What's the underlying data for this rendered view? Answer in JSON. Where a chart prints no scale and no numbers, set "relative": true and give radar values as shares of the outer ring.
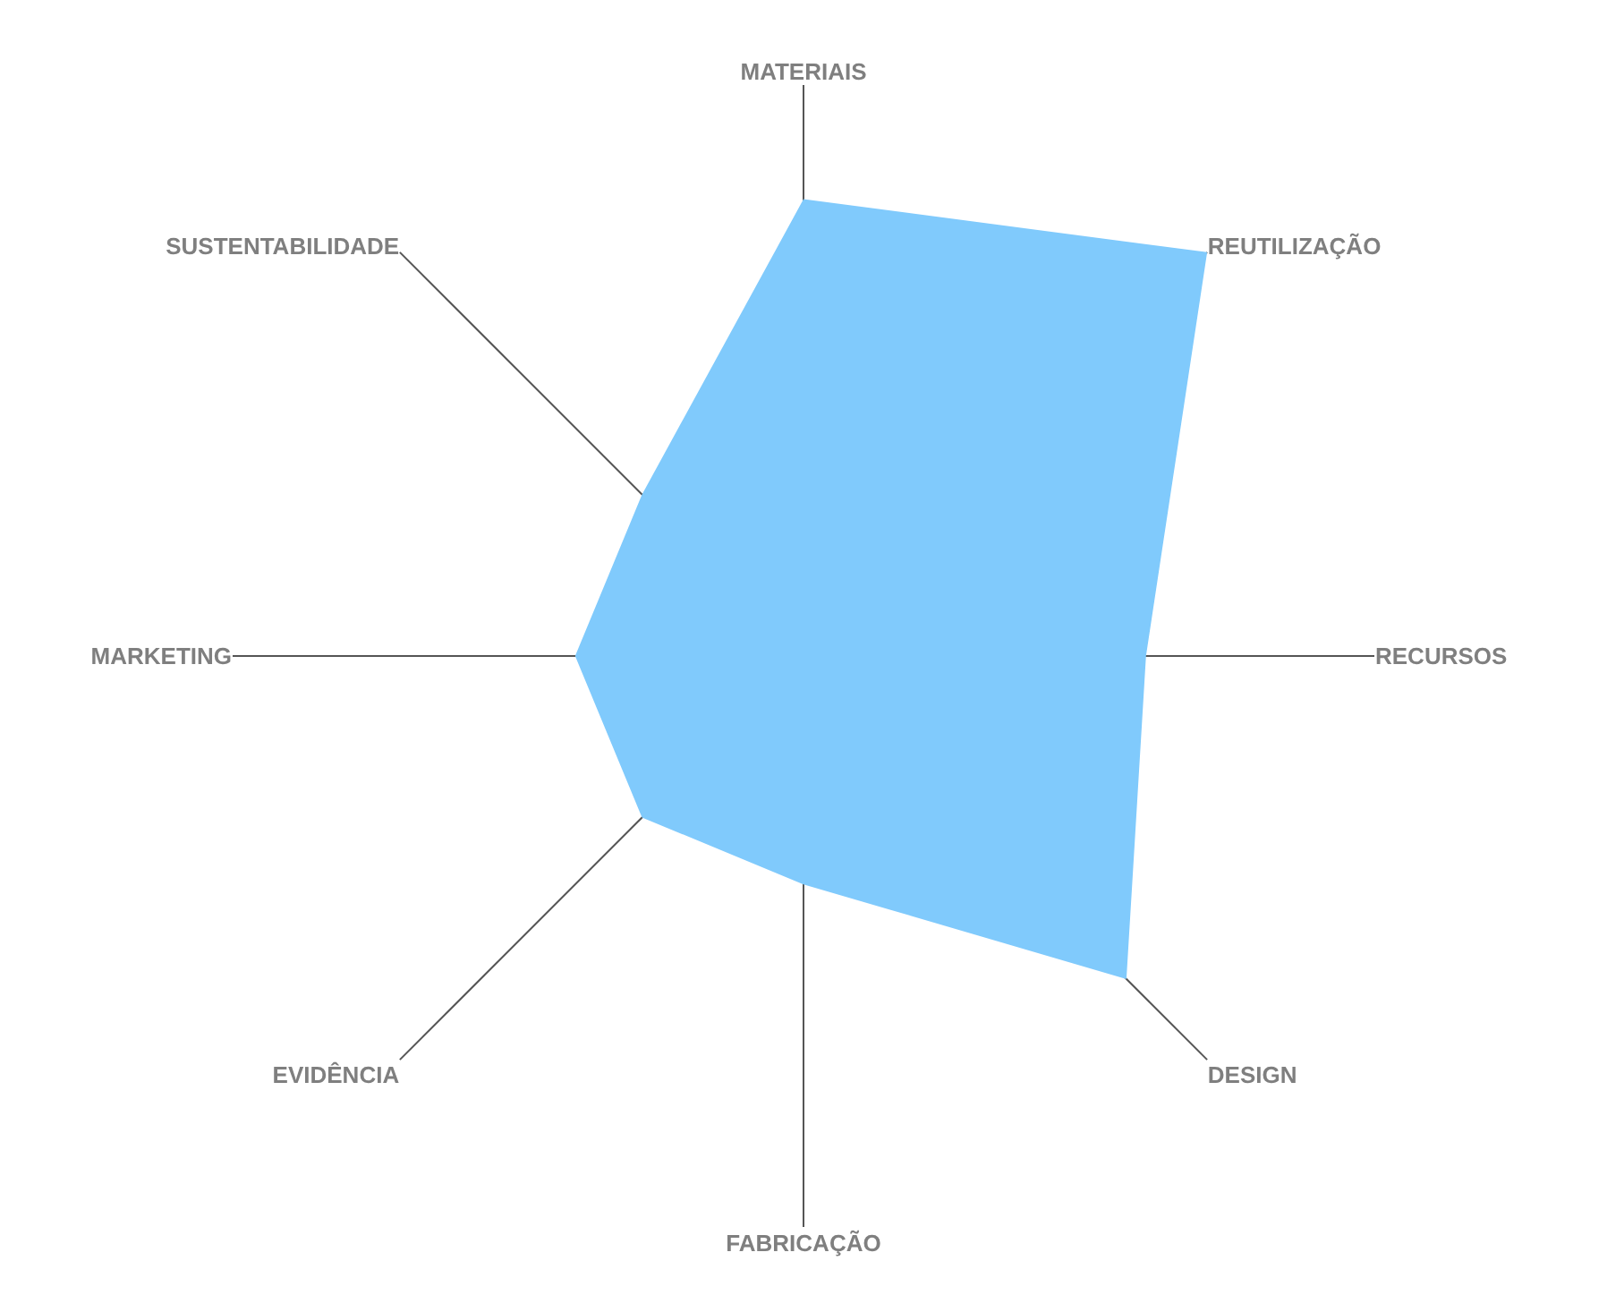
{
  "chart_data": {
    "type": "radar",
    "relative": true,
    "categories": [
      "MATERIAIS",
      "REUTILIZAÇÃO",
      "RECURSOS",
      "DESIGN",
      "FABRICAÇÃO",
      "EVIDÊNCIA",
      "MARKETING",
      "SUSTENTABILIDADE"
    ],
    "series": [
      {
        "color": "#80cafc",
        "values": [
          0.8,
          1.0,
          0.6,
          0.8,
          0.4,
          0.4,
          0.4,
          0.4
        ]
      }
    ],
    "grid": "x"
  }
}
